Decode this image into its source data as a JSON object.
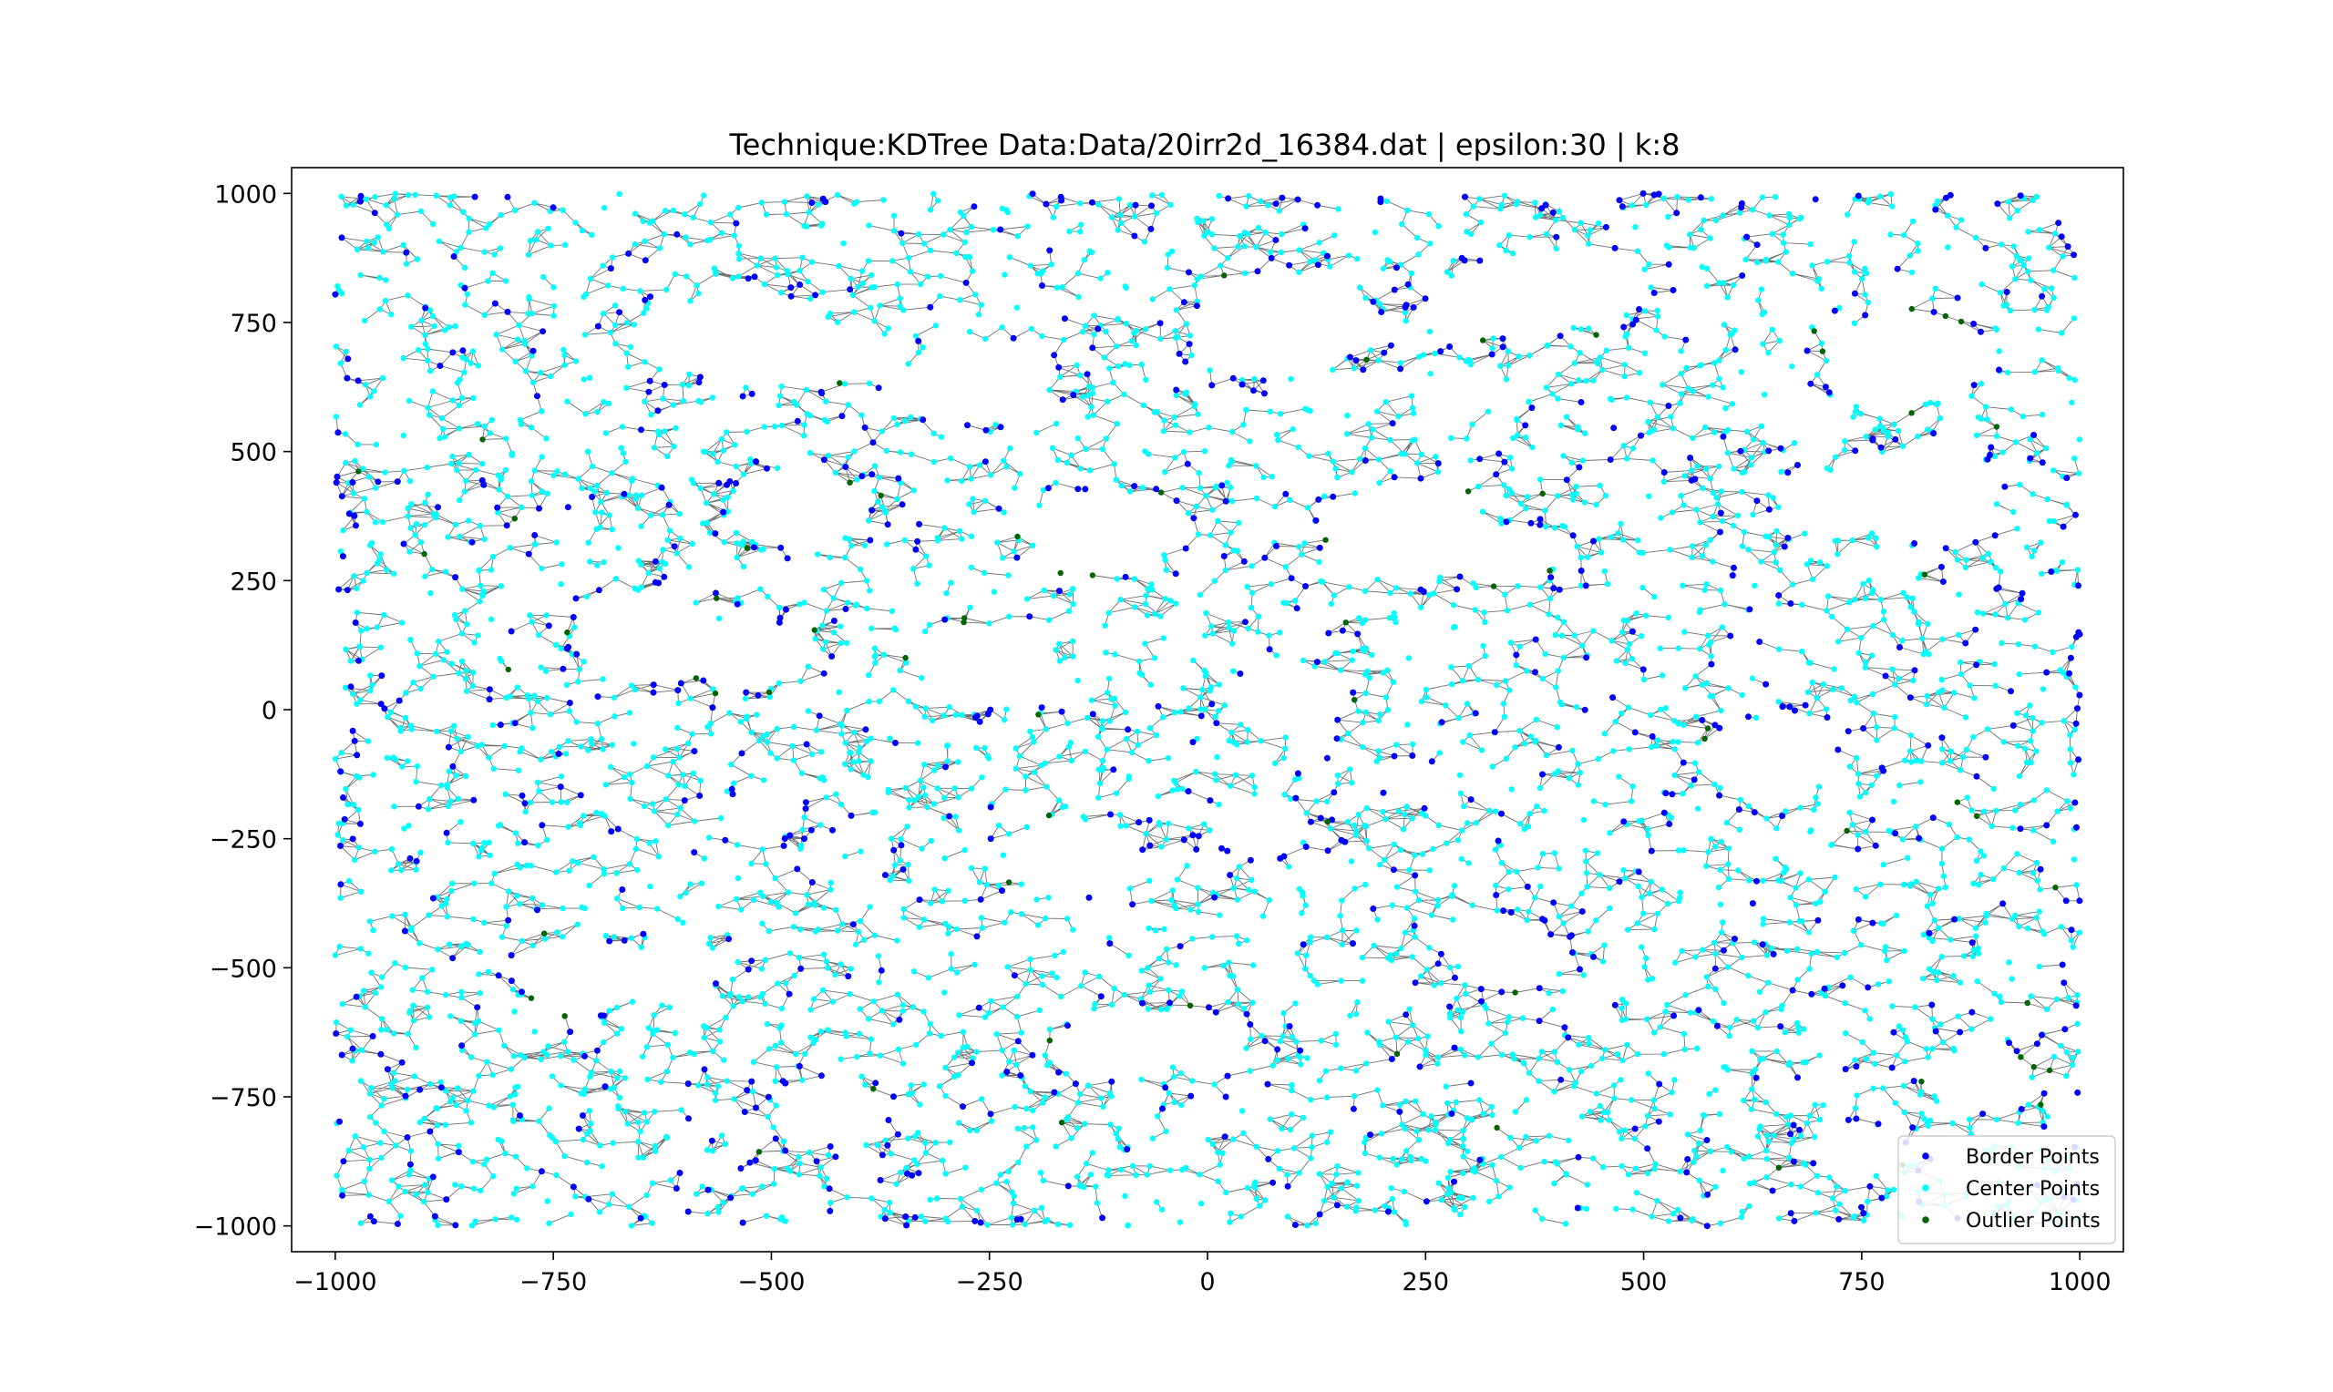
{
  "chart_data": {
    "type": "scatter",
    "title": "Technique:KDTree Data:Data/20irr2d_16384.dat | epsilon:30 | k:8",
    "xlabel": "",
    "ylabel": "",
    "xlim": [
      -1050,
      1050
    ],
    "ylim": [
      -1050,
      1050
    ],
    "x_ticks": [
      -1000,
      -750,
      -500,
      -250,
      0,
      250,
      500,
      750,
      1000
    ],
    "y_ticks": [
      -1000,
      -750,
      -500,
      -250,
      0,
      250,
      500,
      750,
      1000
    ],
    "x_tick_labels": [
      "−1000",
      "−750",
      "−500",
      "−250",
      "0",
      "250",
      "500",
      "750",
      "1000"
    ],
    "y_tick_labels": [
      "−1000",
      "−750",
      "−500",
      "−250",
      "0",
      "250",
      "500",
      "750",
      "1000"
    ],
    "grid": false,
    "legend_position": "lower-right",
    "edge_color": "#404040",
    "holes": [
      {
        "x": -510,
        "y": 720,
        "r": 85
      },
      {
        "x": -600,
        "y": 720,
        "r": 60
      },
      {
        "x": -430,
        "y": 690,
        "r": 55
      },
      {
        "x": -250,
        "y": 640,
        "r": 70
      },
      {
        "x": 80,
        "y": 740,
        "r": 100
      },
      {
        "x": 430,
        "y": 820,
        "r": 75
      },
      {
        "x": 330,
        "y": 790,
        "r": 70
      },
      {
        "x": 800,
        "y": 680,
        "r": 90
      },
      {
        "x": -470,
        "y": 390,
        "r": 75
      },
      {
        "x": -120,
        "y": 340,
        "r": 80
      },
      {
        "x": 230,
        "y": 340,
        "r": 90
      },
      {
        "x": 340,
        "y": 300,
        "r": 60
      },
      {
        "x": 820,
        "y": 420,
        "r": 85
      },
      {
        "x": 720,
        "y": 390,
        "r": 60
      },
      {
        "x": -640,
        "y": 140,
        "r": 85
      },
      {
        "x": -530,
        "y": 110,
        "r": 70
      },
      {
        "x": -250,
        "y": 80,
        "r": 80
      },
      {
        "x": 90,
        "y": 20,
        "r": 70
      },
      {
        "x": 640,
        "y": -90,
        "r": 75
      },
      {
        "x": -510,
        "y": -200,
        "r": 45
      },
      {
        "x": -150,
        "y": -290,
        "r": 75
      },
      {
        "x": 60,
        "y": -230,
        "r": 55
      },
      {
        "x": -720,
        "y": -510,
        "r": 70
      },
      {
        "x": -610,
        "y": -500,
        "r": 55
      },
      {
        "x": 350,
        "y": -480,
        "r": 60
      },
      {
        "x": -100,
        "y": -650,
        "r": 70
      },
      {
        "x": -10,
        "y": -640,
        "r": 55
      },
      {
        "x": -430,
        "y": -780,
        "r": 65
      },
      {
        "x": 890,
        "y": -720,
        "r": 55
      },
      {
        "x": 750,
        "y": -850,
        "r": 50
      }
    ],
    "series": [
      {
        "name": "Border Points",
        "color": "#0000ff",
        "seed": 11,
        "count": 900,
        "radius": 3.5
      },
      {
        "name": "Center Points",
        "color": "#00ffff",
        "seed": 23,
        "count": 4200,
        "radius": 3.2
      },
      {
        "name": "Outlier Points",
        "color": "#006400",
        "seed": 37,
        "count": 70,
        "radius": 3.2
      }
    ]
  }
}
